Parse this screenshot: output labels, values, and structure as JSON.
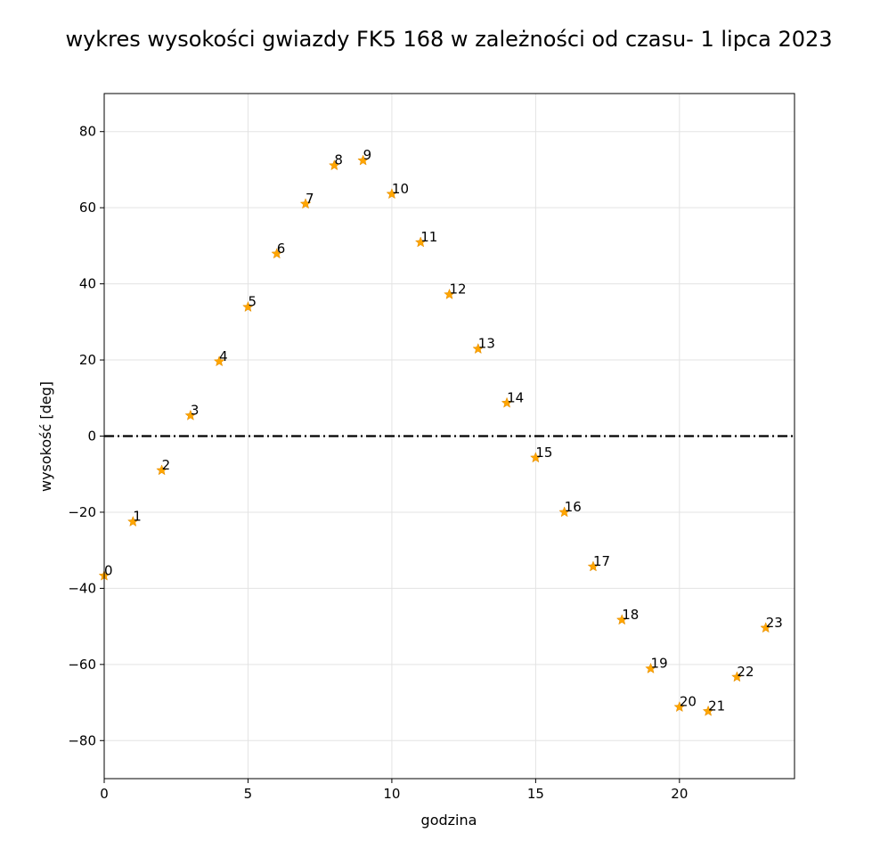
{
  "chart_data": {
    "type": "scatter",
    "title": "wykres wysokości gwiazdy FK5 168 w zależności od czasu- 1 lipca 2023",
    "xlabel": "godzina",
    "ylabel": "wysokość [deg]",
    "xlim": [
      0,
      24
    ],
    "ylim": [
      -90,
      90
    ],
    "xticks": [
      0,
      5,
      10,
      15,
      20
    ],
    "yticks": [
      -80,
      -60,
      -40,
      -20,
      0,
      20,
      40,
      60,
      80
    ],
    "xtick_labels": [
      "0",
      "5",
      "10",
      "15",
      "20"
    ],
    "ytick_labels": [
      "−80",
      "−60",
      "−40",
      "−20",
      "0",
      "20",
      "40",
      "60",
      "80"
    ],
    "grid": true,
    "marker": "star",
    "marker_color": "#FFA500",
    "reference_line": {
      "y": 0,
      "style": "dash-dot",
      "color": "#000000"
    },
    "x": [
      0,
      1,
      2,
      3,
      4,
      5,
      6,
      7,
      8,
      9,
      10,
      11,
      12,
      13,
      14,
      15,
      16,
      17,
      18,
      19,
      20,
      21,
      22,
      23
    ],
    "y": [
      -36.7,
      -22.5,
      -9.0,
      5.4,
      19.6,
      33.9,
      47.9,
      61.0,
      71.1,
      72.4,
      63.6,
      50.9,
      37.2,
      22.9,
      8.7,
      -5.7,
      -20.0,
      -34.3,
      -48.3,
      -61.1,
      -71.2,
      -72.3,
      -63.3,
      -50.4
    ],
    "point_labels": [
      "0",
      "1",
      "2",
      "3",
      "4",
      "5",
      "6",
      "7",
      "8",
      "9",
      "10",
      "11",
      "12",
      "13",
      "14",
      "15",
      "16",
      "17",
      "18",
      "19",
      "20",
      "21",
      "22",
      "23"
    ]
  }
}
